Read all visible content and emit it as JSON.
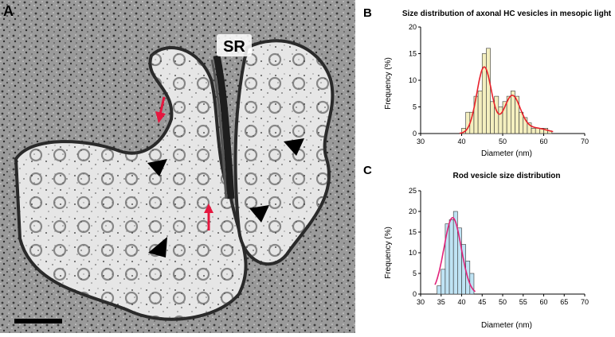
{
  "figure": {
    "panel_a_letter": "A",
    "panel_b_letter": "B",
    "panel_c_letter": "C",
    "micro_label": "SR"
  },
  "chart_data": [
    {
      "type": "bar",
      "title": "Size distribution of axonal HC vesicles in mesopic light",
      "xlabel": "Diameter (nm)",
      "ylabel": "Frequency (%)",
      "xlim": [
        30,
        70
      ],
      "ylim": [
        0,
        20
      ],
      "xticks": [
        30,
        40,
        50,
        60,
        70
      ],
      "yticks": [
        0,
        5,
        10,
        15,
        20
      ],
      "bin_width": 1,
      "bins": [
        40,
        41,
        42,
        43,
        44,
        45,
        46,
        47,
        48,
        49,
        50,
        51,
        52,
        53,
        54,
        55,
        56,
        57,
        58,
        59,
        60,
        61
      ],
      "values": [
        1,
        4,
        4,
        7,
        8,
        15,
        16,
        6,
        7,
        5,
        6,
        7,
        8,
        7,
        4,
        3,
        2,
        1,
        1,
        1,
        1,
        0.5
      ],
      "bar_color": "#f4efbf",
      "fit_color": "#e8202a",
      "fit": {
        "components": [
          {
            "mean": 45.5,
            "sd": 1.8,
            "amp": 12.5
          },
          {
            "mean": 52.3,
            "sd": 2.0,
            "amp": 7.0
          }
        ],
        "tail": {
          "mean": 58,
          "sd": 3,
          "amp": 1
        }
      },
      "legend": "none",
      "grid": false
    },
    {
      "type": "bar",
      "title": "Rod vesicle size distribution",
      "xlabel": "Diameter (nm)",
      "ylabel": "Frequency (%)",
      "xlim": [
        30,
        70
      ],
      "ylim": [
        0,
        25
      ],
      "xticks": [
        30,
        35,
        40,
        45,
        50,
        55,
        60,
        65,
        70
      ],
      "yticks": [
        0,
        5,
        10,
        15,
        20,
        25
      ],
      "bin_width": 1,
      "bins": [
        34,
        35,
        36,
        37,
        38,
        39,
        40,
        41,
        42
      ],
      "values": [
        2,
        6,
        17,
        18,
        20,
        16,
        12,
        8,
        5
      ],
      "bar_color": "#bfe3f4",
      "fit_color": "#e0227a",
      "fit": {
        "components": [
          {
            "mean": 37.8,
            "sd": 2.1,
            "amp": 18.5
          }
        ]
      },
      "legend": "none",
      "grid": false
    }
  ]
}
